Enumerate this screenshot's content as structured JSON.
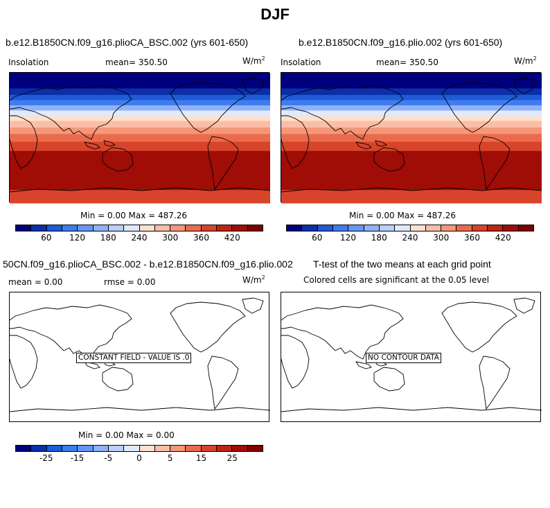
{
  "figure_title": "DJF",
  "chart_data": [
    {
      "type": "heatmap",
      "title": "b.e12.B1850CN.f09_g16.plioCA_BSC.002 (yrs 601-650)",
      "left_label": "Insolation",
      "mean_label": "mean= 350.50",
      "units": "W/m",
      "units_sup": "2",
      "stats": "Min =   0.00 Max = 487.26",
      "colorbar_ticks": [
        "60",
        "120",
        "180",
        "240",
        "300",
        "360",
        "420"
      ],
      "colorbar_levels": [
        30,
        60,
        90,
        120,
        150,
        180,
        210,
        240,
        270,
        300,
        330,
        360,
        390,
        420,
        450
      ],
      "min": 0.0,
      "max": 487.26,
      "mean": 350.5
    },
    {
      "type": "heatmap",
      "title": "b.e12.B1850CN.f09_g16.plio.002 (yrs 601-650)",
      "left_label": "Insolation",
      "mean_label": "mean= 350.50",
      "units": "W/m",
      "units_sup": "2",
      "stats": "Min =   0.00 Max = 487.26",
      "colorbar_ticks": [
        "60",
        "120",
        "180",
        "240",
        "300",
        "360",
        "420"
      ],
      "colorbar_levels": [
        30,
        60,
        90,
        120,
        150,
        180,
        210,
        240,
        270,
        300,
        330,
        360,
        390,
        420,
        450
      ],
      "min": 0.0,
      "max": 487.26,
      "mean": 350.5
    },
    {
      "type": "heatmap",
      "title": "50CN.f09_g16.plioCA_BSC.002 - b.e12.B1850CN.f09_g16.plio.002",
      "left_label": "mean =   0.00",
      "mean_label": "rmse =   0.00",
      "units": "W/m",
      "units_sup": "2",
      "stats": "Min =   0.00 Max =   0.00",
      "annotation": "CONSTANT FIELD - VALUE IS .0",
      "colorbar_ticks": [
        "-25",
        "-15",
        "-5",
        "0",
        "5",
        "15",
        "25"
      ],
      "colorbar_levels": [
        -30,
        -25,
        -20,
        -15,
        -10,
        -5,
        -2,
        0,
        2,
        5,
        10,
        15,
        20,
        25,
        30
      ],
      "min": 0.0,
      "max": 0.0
    },
    {
      "type": "heatmap",
      "title": "T-test of the two means at each grid point",
      "subtitle": "Colored cells are significant at the 0.05 level",
      "annotation": "NO CONTOUR DATA"
    }
  ],
  "colors": {
    "scale": [
      "#00007f",
      "#0a2fa8",
      "#1f5bd6",
      "#3f7cee",
      "#6496f5",
      "#8fb2f9",
      "#b9cffc",
      "#dfeafd",
      "#fde0d0",
      "#fbbea5",
      "#f5977a",
      "#ea6b4c",
      "#d8442a",
      "#c02412",
      "#a00c06",
      "#800000"
    ]
  }
}
